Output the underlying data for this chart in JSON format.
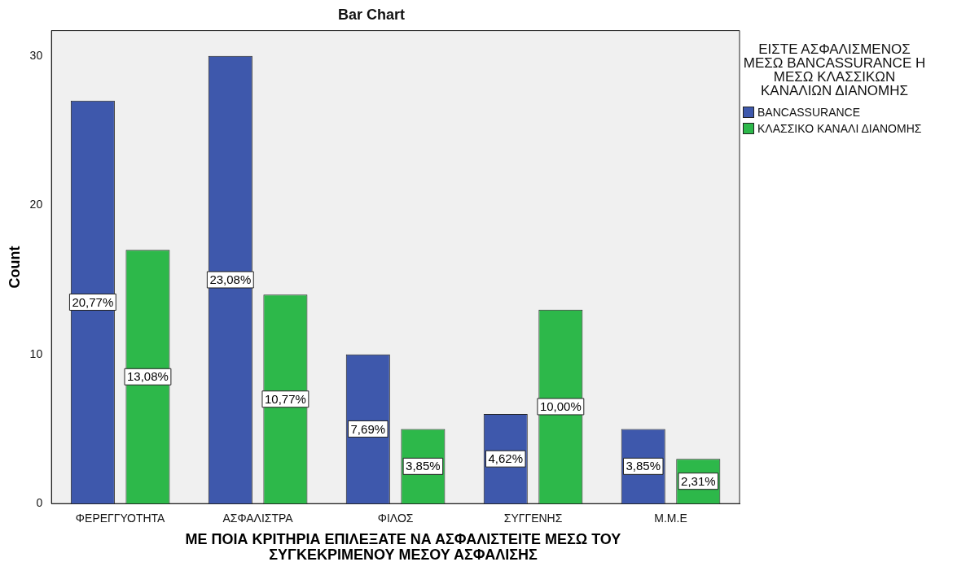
{
  "chart_data": {
    "type": "bar",
    "title": "Bar Chart",
    "xlabel": "ΜΕ ΠΟΙΑ ΚΡΙΤΗΡΙΑ ΕΠΙΛΕΞΑΤΕ ΝΑ ΑΣΦΑΛΙΣΤΕΙΤΕ ΜΕΣΩ ΤΟΥ ΣΥΓΚΕΚΡΙΜΕΝΟΥ ΜΕΣΟΥ ΑΣΦΑΛΙΣΗΣ",
    "ylabel": "Count",
    "legend_title": "ΕΙΣΤΕ ΑΣΦΑΛΙΣΜΕΝΟΣ ΜΕΣΩ BANCASSURANCE Η ΜΕΣΩ ΚΛΑΣΣΙΚΩΝ ΚΑΝΑΛΙΩΝ ΔΙΑΝΟΜΗΣ",
    "categories": [
      "ΦΕΡΕΓΓΥΟΤΗΤΑ",
      "ΑΣΦΑΛΙΣΤΡΑ",
      "ΦΙΛΟΣ",
      "ΣΥΓΓΕΝΗΣ",
      "Μ.Μ.Ε"
    ],
    "series": [
      {
        "name": "BANCASSURANCE",
        "color": "#3e58ac",
        "values": [
          27,
          30,
          10,
          6,
          5
        ]
      },
      {
        "name": "ΚΛΑΣΣΙΚΟ ΚΑΝΑΛΙ ΔΙΑΝΟΜΗΣ",
        "color": "#2db84a",
        "values": [
          17,
          14,
          5,
          13,
          3
        ]
      }
    ],
    "annotations": [
      "20,77%",
      "23,08%",
      "7,69%",
      "4,62%",
      "3,85%",
      "13,08%",
      "10,77%",
      "3,85%",
      "10,00%",
      "2,31%"
    ],
    "ylim": [
      0,
      31.7
    ],
    "yticks": [
      0,
      10,
      20,
      30
    ],
    "grid": false,
    "legend": "right"
  }
}
